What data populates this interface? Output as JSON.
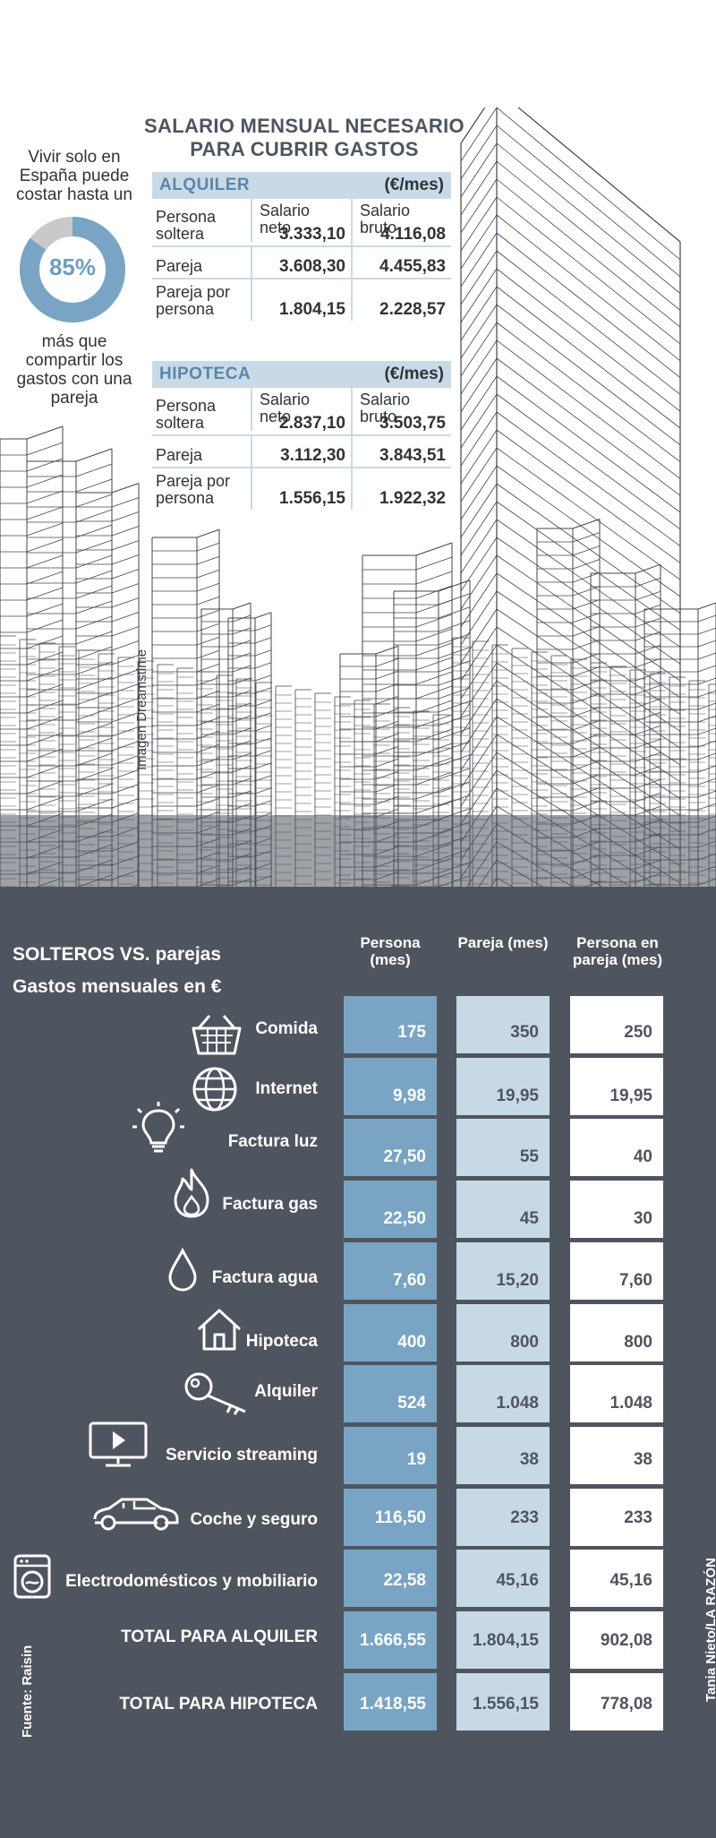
{
  "infographic": {
    "main_title": "SALARIO MENSUAL NECESARIO PARA CUBRIR GASTOS",
    "intro_text": "Vivir solo en España puede costar hasta un",
    "donut_value": "85%",
    "donut_fraction": 0.85,
    "outro_text": "más que compartir los gastos con una pareja",
    "image_credit": "Imagen Dreamstime",
    "source": "Fuente: Raisin",
    "author": "Tania Nieto/LA RAZÓN"
  },
  "salary_tables": [
    {
      "title": "ALQUILER",
      "unit": "(€/mes)",
      "col_neto": "Salario neto",
      "col_bruto": "Salario bruto",
      "rows": [
        {
          "label": "Persona soltera",
          "neto": "3.333,10",
          "bruto": "4.116,08"
        },
        {
          "label": "Pareja",
          "neto": "3.608,30",
          "bruto": "4.455,83"
        },
        {
          "label": "Pareja por persona",
          "neto": "1.804,15",
          "bruto": "2.228,57"
        }
      ]
    },
    {
      "title": "HIPOTECA",
      "unit": "(€/mes)",
      "col_neto": "Salario neto",
      "col_bruto": "Salario bruto",
      "rows": [
        {
          "label": "Persona soltera",
          "neto": "2.837,10",
          "bruto": "3.503,75"
        },
        {
          "label": "Pareja",
          "neto": "3.112,30",
          "bruto": "3.843,51"
        },
        {
          "label": "Pareja por persona",
          "neto": "1.556,15",
          "bruto": "1.922,32"
        }
      ]
    }
  ],
  "colors": {
    "panel": "#4f555e",
    "col_persona": "#7aa4c4",
    "col_pareja": "#c8d9e6",
    "col_por_persona": "#ffffff",
    "table_header": "#c9dae7"
  },
  "chart_data": {
    "type": "table",
    "title": "SOLTEROS VS. parejas",
    "subtitle": "Gastos mensuales en €",
    "columns": [
      "Persona (mes)",
      "Pareja (mes)",
      "Persona en pareja (mes)"
    ],
    "rows": [
      {
        "label": "Comida",
        "icon": "basket-icon",
        "values": [
          "175",
          "350",
          "250"
        ]
      },
      {
        "label": "Internet",
        "icon": "globe-icon",
        "values": [
          "9,98",
          "19,95",
          "19,95"
        ]
      },
      {
        "label": "Factura luz",
        "icon": "lightbulb-icon",
        "values": [
          "27,50",
          "55",
          "40"
        ]
      },
      {
        "label": "Factura gas",
        "icon": "flame-icon",
        "values": [
          "22,50",
          "45",
          "30"
        ]
      },
      {
        "label": "Factura agua",
        "icon": "water-drop-icon",
        "values": [
          "7,60",
          "15,20",
          "7,60"
        ]
      },
      {
        "label": "Hipoteca",
        "icon": "house-icon",
        "values": [
          "400",
          "800",
          "800"
        ]
      },
      {
        "label": "Alquiler",
        "icon": "key-icon",
        "values": [
          "524",
          "1.048",
          "1.048"
        ]
      },
      {
        "label": "Servicio streaming",
        "icon": "play-screen-icon",
        "values": [
          "19",
          "38",
          "38"
        ]
      },
      {
        "label": "Coche y seguro",
        "icon": "car-icon",
        "values": [
          "116,50",
          "233",
          "233"
        ]
      },
      {
        "label": "Electrodomésticos y mobiliario",
        "icon": "washing-machine-icon",
        "values": [
          "22,58",
          "45,16",
          "45,16"
        ]
      },
      {
        "label": "TOTAL PARA ALQUILER",
        "icon": "",
        "values": [
          "1.666,55",
          "1.804,15",
          "902,08"
        ]
      },
      {
        "label": "TOTAL PARA HIPOTECA",
        "icon": "",
        "values": [
          "1.418,55",
          "1.556,15",
          "778,08"
        ]
      }
    ]
  }
}
